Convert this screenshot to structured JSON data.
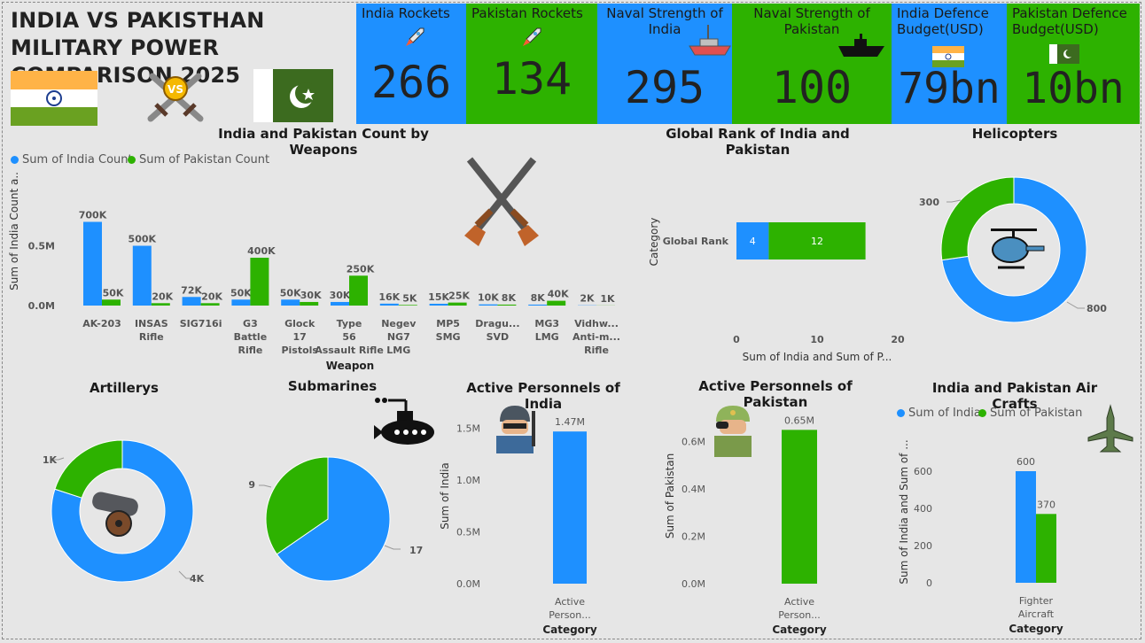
{
  "title": "INDIA VS PAKISTHAN MILITARY POWER COMPARISON 2025",
  "icons": [
    "india-flag",
    "vs-swords",
    "pakistan-flag",
    "rocket",
    "warship",
    "helicopter",
    "cannon",
    "submarine",
    "soldier",
    "fighter-jet",
    "crossed-rifles"
  ],
  "colors": {
    "india": "#1e90ff",
    "pakistan": "#2db200"
  },
  "kpis": [
    {
      "label": "India Rockets",
      "value": "266"
    },
    {
      "label": "Pakistan Rockets",
      "value": "134"
    },
    {
      "label": "Naval Strength of India",
      "value": "295"
    },
    {
      "label": "Naval Strength of Pakistan",
      "value": "100"
    },
    {
      "label": "India Defence Budget(USD)",
      "value": "79bn"
    },
    {
      "label": "Pakistan Defence Budget(USD)",
      "value": "10bn"
    }
  ],
  "weapons_chart": {
    "title": "India and Pakistan Count by Weapons",
    "legend": [
      "Sum of India Count",
      "Sum of Pakistan Count"
    ],
    "xlabel": "Weapon",
    "ylabel": "Sum of India Count a...",
    "yticks": [
      "0.0M",
      "0.5M"
    ]
  },
  "rank_chart": {
    "title": "Global Rank of India and Pakistan",
    "ylabel": "Category",
    "category": "Global Rank",
    "xlabel": "Sum of India and Sum of P...",
    "xticks": [
      "0",
      "10",
      "20"
    ]
  },
  "helicopters": {
    "title": "Helicopters"
  },
  "artillery": {
    "title": "Artillerys"
  },
  "submarines": {
    "title": "Submarines"
  },
  "india_personnel": {
    "title": "Active Personnels of India",
    "ylabel": "Sum of India",
    "xlabel": "Category",
    "category": "Active Person...",
    "yticks": [
      "0.0M",
      "0.5M",
      "1.0M",
      "1.5M"
    ]
  },
  "pak_personnel": {
    "title": "Active Personnels of Pakistan",
    "ylabel": "Sum of Pakistan",
    "xlabel": "Category",
    "category": "Active Person...",
    "yticks": [
      "0.0M",
      "0.2M",
      "0.4M",
      "0.6M"
    ]
  },
  "aircraft": {
    "title": "India and Pakistan Air Crafts",
    "legend": [
      "Sum of India",
      "Sum of Pakistan"
    ],
    "ylabel": "Sum of India and Sum of ...",
    "xlabel": "Category",
    "category": "Fighter Aircraft",
    "yticks": [
      "0",
      "200",
      "400",
      "600"
    ]
  },
  "chart_data": [
    {
      "type": "bar",
      "title": "India and Pakistan Count by Weapons",
      "categories": [
        "AK-203",
        "INSAS Rifle",
        "SIG716i",
        "G3 Battle Rifle",
        "Glock 17 Pistols",
        "Type 56 Assault Rifle",
        "Negev NG7 LMG",
        "MP5 SMG",
        "Dragu... SVD",
        "MG3 LMG",
        "Vidhw... Anti-m... Rifle"
      ],
      "series": [
        {
          "name": "Sum of India Count",
          "values": [
            700000,
            500000,
            72000,
            50000,
            50000,
            30000,
            16000,
            15000,
            10000,
            8000,
            2000
          ],
          "labels": [
            "700K",
            "500K",
            "72K",
            "50K",
            "50K",
            "30K",
            "16K",
            "15K",
            "10K",
            "8K",
            "2K"
          ]
        },
        {
          "name": "Sum of Pakistan Count",
          "values": [
            50000,
            20000,
            20000,
            400000,
            30000,
            250000,
            5000,
            25000,
            8000,
            40000,
            1000
          ],
          "labels": [
            "50K",
            "20K",
            "20K",
            "400K",
            "30K",
            "250K",
            "5K",
            "25K",
            "8K",
            "40K",
            "1K"
          ]
        }
      ],
      "xlabel": "Weapon",
      "ylabel": "Sum of India Count a...",
      "ylim": [
        0,
        800000
      ]
    },
    {
      "type": "bar",
      "title": "Global Rank of India and Pakistan",
      "orientation": "horizontal-stacked",
      "categories": [
        "Global Rank"
      ],
      "series": [
        {
          "values": [
            4
          ]
        },
        {
          "values": [
            12
          ]
        }
      ],
      "xlabel": "Sum of India and Sum of P...",
      "ylabel": "Category",
      "xlim": [
        0,
        20
      ]
    },
    {
      "type": "pie",
      "title": "Helicopters",
      "donut": true,
      "values": [
        800,
        300
      ],
      "labels": [
        "800",
        "300"
      ]
    },
    {
      "type": "pie",
      "title": "Artillerys",
      "donut": true,
      "values": [
        4000,
        1000
      ],
      "labels": [
        "4K",
        "1K"
      ]
    },
    {
      "type": "pie",
      "title": "Submarines",
      "values": [
        17,
        9
      ],
      "labels": [
        "17",
        "9"
      ]
    },
    {
      "type": "bar",
      "title": "Active Personnels of India",
      "categories": [
        "Active Person..."
      ],
      "series": [
        {
          "values": [
            1470000
          ],
          "labels": [
            "1.47M"
          ]
        }
      ],
      "xlabel": "Category",
      "ylabel": "Sum of India",
      "ylim": [
        0,
        1600000
      ]
    },
    {
      "type": "bar",
      "title": "Active Personnels of Pakistan",
      "categories": [
        "Active Person..."
      ],
      "series": [
        {
          "values": [
            650000
          ],
          "labels": [
            "0.65M"
          ]
        }
      ],
      "xlabel": "Category",
      "ylabel": "Sum of Pakistan",
      "ylim": [
        0,
        700000
      ]
    },
    {
      "type": "bar",
      "title": "India and Pakistan Air Crafts",
      "categories": [
        "Fighter Aircraft"
      ],
      "series": [
        {
          "name": "Sum of India",
          "values": [
            600
          ],
          "labels": [
            "600"
          ]
        },
        {
          "name": "Sum of Pakistan",
          "values": [
            370
          ],
          "labels": [
            "370"
          ]
        }
      ],
      "xlabel": "Category",
      "ylabel": "Sum of India and Sum of ...",
      "ylim": [
        0,
        700
      ]
    }
  ]
}
